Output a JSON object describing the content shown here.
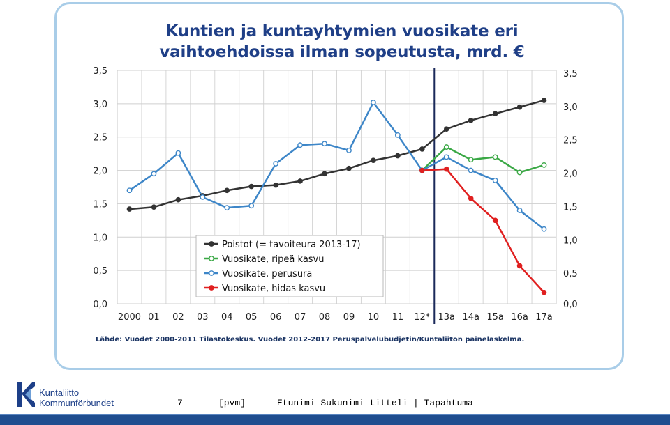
{
  "footer": {
    "page_number": "7",
    "date_placeholder": "[pvm]",
    "presenter": "Etunimi Sukunimi titteli | Tapahtuma",
    "logo_line1": "Kuntaliitto",
    "logo_line2": "Kommunförbundet"
  },
  "colors": {
    "frame_border": "#a9cde8",
    "title": "#1f3f87",
    "poistot": "#333333",
    "ripea": "#3aa845",
    "perusura": "#3d86c8",
    "hidas": "#e02020",
    "divider": "#1b2a5a",
    "footer_bar": "#1f4d8f"
  },
  "chart_data": {
    "type": "line",
    "title_lines": [
      "Kuntien ja kuntayhtymien vuosikate eri",
      "vaihtoehdoissa ilman sopeutusta, mrd. €"
    ],
    "categories": [
      "2000",
      "01",
      "02",
      "03",
      "04",
      "05",
      "06",
      "07",
      "08",
      "09",
      "10",
      "11",
      "12*",
      "13a",
      "14a",
      "15a",
      "16a",
      "17a"
    ],
    "ylim": [
      0,
      3.5
    ],
    "yticks": [
      "0,0",
      "0,5",
      "1,0",
      "1,5",
      "2,0",
      "2,5",
      "3,0",
      "3,5"
    ],
    "grid": true,
    "legend_position": "bottom-center",
    "vertical_divider_after": "12*",
    "series": [
      {
        "name": "Poistot (= tavoiteura 2013-17)",
        "color": "#333333",
        "marker": "filled",
        "values": [
          1.42,
          1.45,
          1.56,
          1.62,
          1.7,
          1.76,
          1.78,
          1.84,
          1.95,
          2.03,
          2.15,
          2.22,
          2.32,
          2.62,
          2.75,
          2.85,
          2.95,
          3.05
        ]
      },
      {
        "name": "Vuosikate, ripeä kasvu",
        "color": "#3aa845",
        "marker": "open",
        "values": [
          null,
          null,
          null,
          null,
          null,
          null,
          null,
          null,
          null,
          null,
          null,
          null,
          2.0,
          2.35,
          2.16,
          2.2,
          1.97,
          2.08
        ]
      },
      {
        "name": "Vuosikate, perusura",
        "color": "#3d86c8",
        "marker": "open",
        "values": [
          1.7,
          1.95,
          2.26,
          1.6,
          1.44,
          1.47,
          2.1,
          2.38,
          2.4,
          2.3,
          3.02,
          2.53,
          2.0,
          2.2,
          2.0,
          1.85,
          1.4,
          1.12
        ]
      },
      {
        "name": "Vuosikate, hidas kasvu",
        "color": "#e02020",
        "marker": "filled",
        "values": [
          null,
          null,
          null,
          null,
          null,
          null,
          null,
          null,
          null,
          null,
          null,
          null,
          2.0,
          2.02,
          1.58,
          1.25,
          0.57,
          0.17
        ]
      }
    ],
    "source": "Lähde: Vuodet 2000-2011 Tilastokeskus. Vuodet 2012-2017 Peruspalvelubudjetin/Kuntaliiton painelaskelma."
  }
}
